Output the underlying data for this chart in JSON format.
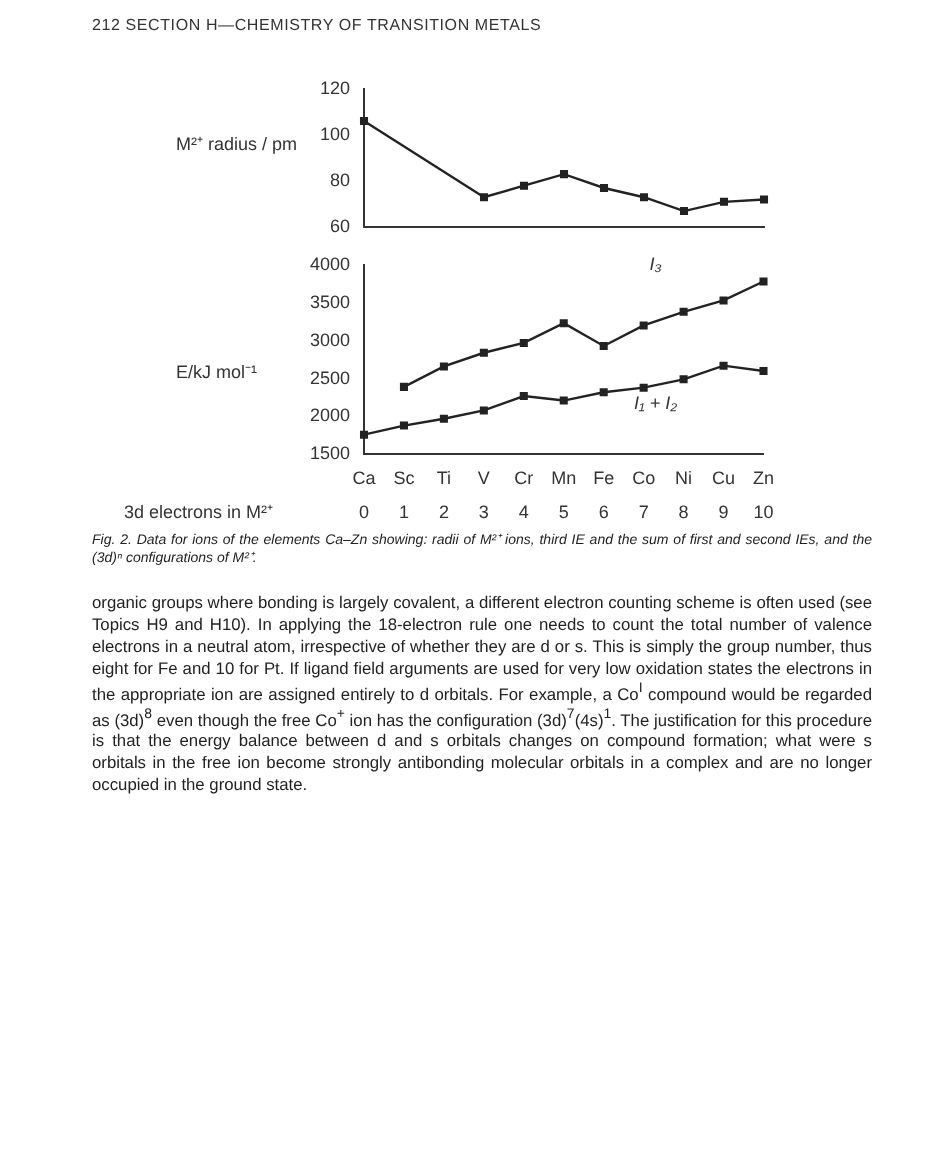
{
  "chart_data": [
    {
      "type": "line",
      "ylabel": "M²⁺ radius / pm",
      "categories": [
        null,
        null,
        null,
        null,
        null,
        null,
        null,
        null,
        null,
        null,
        null
      ],
      "series": [
        {
          "color": "#222222",
          "values": [
            106,
            null,
            null,
            73,
            78,
            83,
            77,
            73,
            67,
            71,
            72
          ]
        }
      ],
      "ylim": [
        60,
        120
      ],
      "yticks": [
        60,
        80,
        100,
        120
      ],
      "tick_labels": "y",
      "marker": "square",
      "grid": false,
      "annotations": [
        "212    SECTION H—CHEMISTRY OF TRANSITION METALS"
      ]
    },
    {
      "type": "line",
      "ylabel": "E/kJ mol⁻¹",
      "xlabel": "3d electrons in M²⁺",
      "categories": [
        "Ca",
        "Sc",
        "Ti",
        "V",
        "Cr",
        "Mn",
        "Fe",
        "Co",
        "Ni",
        "Cu",
        "Zn"
      ],
      "series": [
        {
          "name": "I₃",
          "color": "#222222",
          "values": [
            null,
            2390,
            2660,
            2840,
            2970,
            3230,
            2930,
            3200,
            3380,
            3530,
            3780
          ]
        },
        {
          "name": "I₁ + I₂",
          "color": "#222222",
          "values": [
            1760,
            1880,
            1970,
            2080,
            2270,
            2210,
            2320,
            2380,
            2490,
            2670,
            2600
          ]
        }
      ],
      "ylim": [
        1500,
        4000
      ],
      "yticks": [
        1500,
        2000,
        2500,
        3000,
        3500,
        4000
      ],
      "marker": "square",
      "grid": false,
      "annotations": [
        "0",
        "1",
        "2",
        "3",
        "4",
        "5",
        "6",
        "7",
        "8",
        "9",
        "10",
        "Fig. 2. Data for ions of the elements Ca–Zn showing: radii of M²⁺ ions, third IE and the sum of first and second IEs, and the (3d)ⁿ configurations of M²⁺.",
        "organic groups where bonding is largely covalent, a different electron counting scheme is often used (see Topics H9 and H10). In applying the 18-electron rule one needs to count the total number of valence electrons in a neutral atom, irrespective of whether they are d or s. This is simply the group number, thus eight for Fe and 10 for Pt. If ligand field arguments are used for very low oxidation states the electrons in the appropriate ion are assigned entirely to d orbitals. For example, a Co$^{I}$ compound would be regarded as (3d)$^{8}$ even though the free Co$^{+}$ ion has the configuration (3d)$^{7}$(4s)$^{1}$. The justification for this procedure is that the energy balance between d and s orbitals changes on compound formation; what were s orbitals in the free ion become strongly antibonding molecular orbitals in a complex and are no longer occupied in the ground state."
      ]
    }
  ]
}
